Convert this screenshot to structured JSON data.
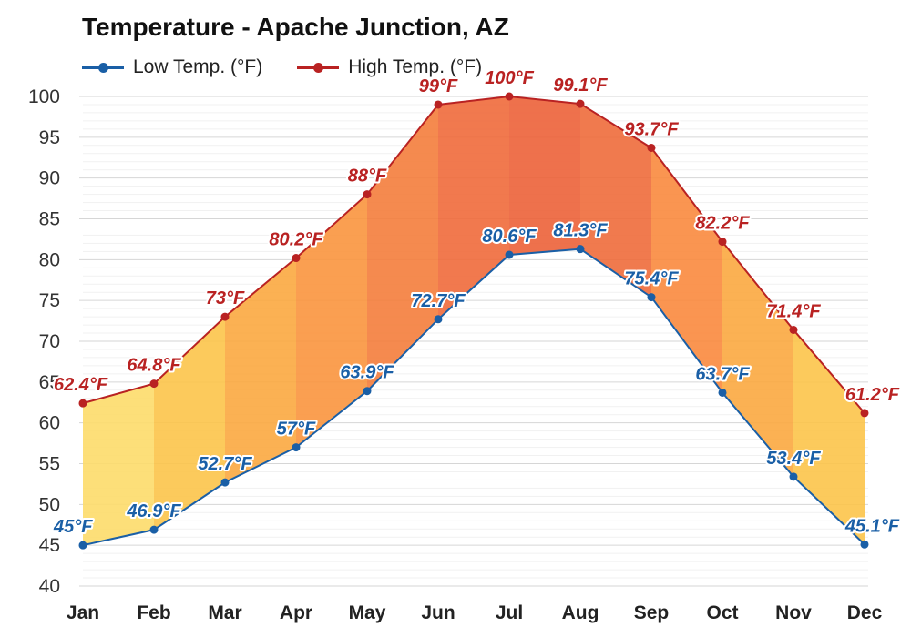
{
  "chart_data": {
    "type": "area",
    "title": "Temperature - Apache Junction, AZ",
    "categories": [
      "Jan",
      "Feb",
      "Mar",
      "Apr",
      "May",
      "Jun",
      "Jul",
      "Aug",
      "Sep",
      "Oct",
      "Nov",
      "Dec"
    ],
    "series": [
      {
        "name": "Low Temp. (°F)",
        "values": [
          45,
          46.9,
          52.7,
          57,
          63.9,
          72.7,
          80.6,
          81.3,
          75.4,
          63.7,
          53.4,
          45.1
        ],
        "color": "#1a5fa6",
        "labels": [
          "45°F",
          "46.9°F",
          "52.7°F",
          "57°F",
          "63.9°F",
          "72.7°F",
          "80.6°F",
          "81.3°F",
          "75.4°F",
          "63.7°F",
          "53.4°F",
          "45.1°F"
        ]
      },
      {
        "name": "High Temp. (°F)",
        "values": [
          62.4,
          64.8,
          73,
          80.2,
          88,
          99,
          100,
          99.1,
          93.7,
          82.2,
          71.4,
          61.2
        ],
        "color": "#b92222",
        "labels": [
          "62.4°F",
          "64.8°F",
          "73°F",
          "80.2°F",
          "88°F",
          "99°F",
          "100°F",
          "99.1°F",
          "93.7°F",
          "82.2°F",
          "71.4°F",
          "61.2°F"
        ]
      }
    ],
    "band_colors": [
      "#fddb6a",
      "#fcc44a",
      "#fba840",
      "#f9953e",
      "#f47d3c",
      "#ef6a3b",
      "#ec6239",
      "#ee6c3b",
      "#f98a3e",
      "#fba840",
      "#fcc44a",
      "#fddb6a"
    ],
    "yticks": [
      40,
      45,
      50,
      55,
      60,
      65,
      70,
      75,
      80,
      85,
      90,
      95,
      100
    ],
    "ylim": [
      40,
      100
    ],
    "xlabel": "",
    "ylabel": "",
    "grid": true,
    "legend_position": "top-left"
  }
}
